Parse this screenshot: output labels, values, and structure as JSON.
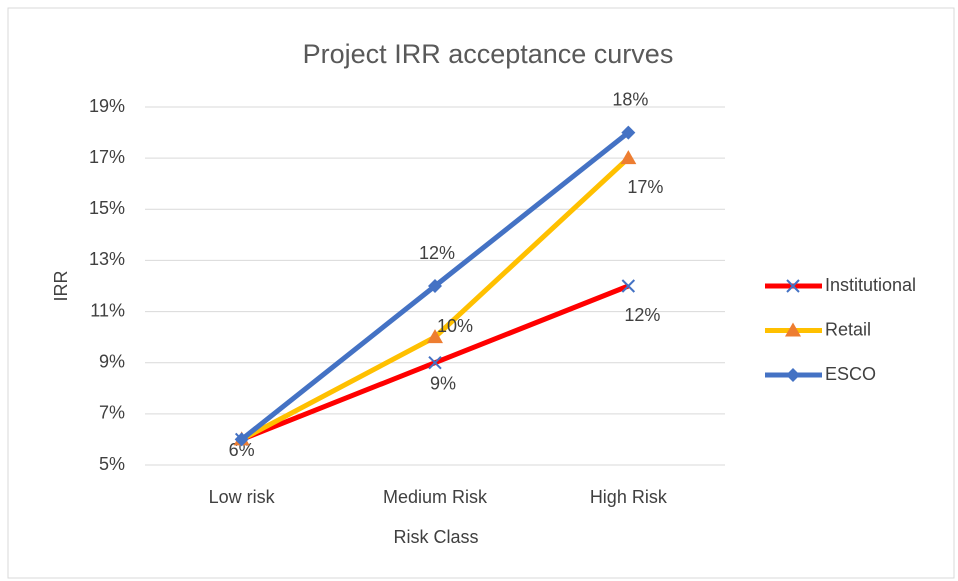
{
  "chart_data": {
    "type": "line",
    "title": "Project IRR acceptance curves",
    "x_label": "Risk Class",
    "y_label": "IRR",
    "categories": [
      "Low risk",
      "Medium Risk",
      "High Risk"
    ],
    "series": [
      {
        "name": "Institutional",
        "color": "#ff0000",
        "marker": "x",
        "marker_color": "#4472c4",
        "values": [
          6,
          9,
          12
        ],
        "value_labels": [
          "6%",
          "9%",
          "12%"
        ]
      },
      {
        "name": "Retail",
        "color": "#ffc000",
        "marker": "triangle",
        "marker_color": "#ed7d31",
        "values": [
          6,
          10,
          17
        ],
        "value_labels": [
          null,
          "10%",
          "17%"
        ]
      },
      {
        "name": "ESCO",
        "color": "#4472c4",
        "marker": "diamond",
        "marker_color": "#4472c4",
        "values": [
          6,
          12,
          18
        ],
        "value_labels": [
          null,
          "12%",
          "18%"
        ]
      }
    ],
    "ylim": [
      5,
      19
    ],
    "yticks": [
      {
        "value": 5,
        "label": "5%"
      },
      {
        "value": 7,
        "label": "7%"
      },
      {
        "value": 9,
        "label": "9%"
      },
      {
        "value": 11,
        "label": "11%"
      },
      {
        "value": 13,
        "label": "13%"
      },
      {
        "value": 15,
        "label": "15%"
      },
      {
        "value": 17,
        "label": "17%"
      },
      {
        "value": 19,
        "label": "19%"
      }
    ],
    "grid": true,
    "legend": "right"
  }
}
